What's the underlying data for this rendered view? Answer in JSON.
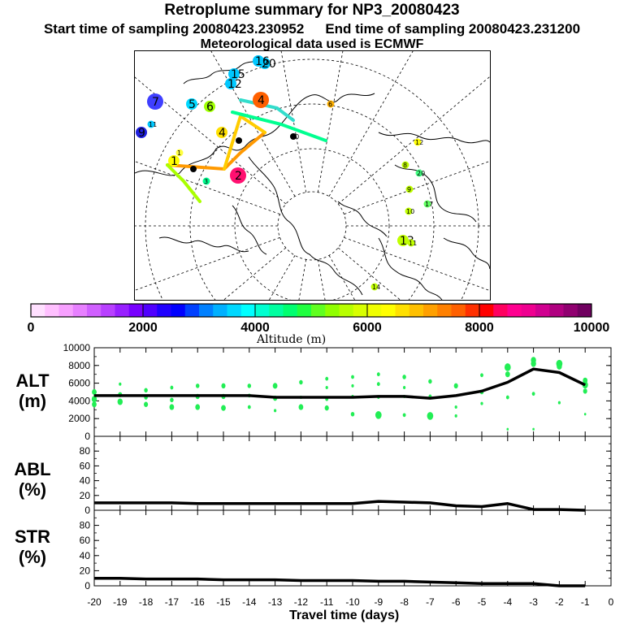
{
  "header": {
    "title": "Retroplume summary for NP3_20080423",
    "start_label": "Start time of sampling 20080423.230952",
    "end_label": "End time of sampling 20080423.231200",
    "met_label": "Meteorological data used is ECMWF"
  },
  "map": {
    "points": [
      {
        "label": "7",
        "color": "#3f3fff",
        "size": "large"
      },
      {
        "label": "5",
        "color": "#00d8ff",
        "size": "medium"
      },
      {
        "label": "6",
        "color": "#9fff00",
        "size": "medium"
      },
      {
        "label": "4",
        "color": "#ff6000",
        "size": "large"
      },
      {
        "label": "4",
        "color": "#ffe000",
        "size": "medium"
      },
      {
        "label": "9",
        "color": "#2020e0",
        "size": "medium"
      },
      {
        "label": "2",
        "color": "#ff1070",
        "size": "large"
      },
      {
        "label": "1",
        "color": "#ffff00",
        "size": "medium"
      },
      {
        "label": "3",
        "color": "#00ff90",
        "size": "small"
      },
      {
        "label": "12",
        "color": "#00c8ff",
        "size": "medium"
      },
      {
        "label": "15",
        "color": "#00c8ff",
        "size": "medium"
      },
      {
        "label": "20",
        "color": "#00c8ff",
        "size": "medium"
      },
      {
        "label": "16",
        "color": "#00c8ff",
        "size": "medium"
      },
      {
        "label": "6",
        "color": "#ffb000",
        "size": "small"
      },
      {
        "label": "8",
        "color": "#c0ff00",
        "size": "small"
      },
      {
        "label": "9",
        "color": "#c0ff00",
        "size": "small"
      },
      {
        "label": "10",
        "color": "#c0ff00",
        "size": "small"
      },
      {
        "label": "13",
        "color": "#c0ff00",
        "size": "medium"
      },
      {
        "label": "11",
        "color": "#c0ff00",
        "size": "small"
      },
      {
        "label": "12",
        "color": "#ffff00",
        "size": "small"
      },
      {
        "label": "17",
        "color": "#60ff60",
        "size": "small"
      },
      {
        "label": "20",
        "color": "#40ff80",
        "size": "small"
      },
      {
        "label": "14",
        "color": "#c0ff00",
        "size": "small"
      },
      {
        "label": "11",
        "color": "#00c8ff",
        "size": "small"
      },
      {
        "label": "1",
        "color": "#ffff40",
        "size": "small"
      },
      {
        "label": "2",
        "color": "#000000",
        "size": "tiny"
      },
      {
        "label": "3",
        "color": "#000000",
        "size": "tiny"
      },
      {
        "label": "10",
        "color": "#000000",
        "size": "tiny"
      }
    ]
  },
  "colorbar": {
    "axis_label": "Altitude (m)",
    "ticks": [
      "0",
      "2000",
      "4000",
      "6000",
      "8000",
      "10000"
    ],
    "colors": [
      "#ffe0ff",
      "#ffc0ff",
      "#f7a0ff",
      "#e780ff",
      "#d060ff",
      "#b840ff",
      "#9820ff",
      "#7800ff",
      "#5000ff",
      "#2000ff",
      "#0000ff",
      "#0040ff",
      "#0080ff",
      "#00b0ff",
      "#00d8ff",
      "#00ffff",
      "#00ffd0",
      "#00ffa0",
      "#00ff70",
      "#20ff40",
      "#60ff20",
      "#90ff00",
      "#b8ff00",
      "#d8ff00",
      "#f0ff00",
      "#ffff00",
      "#ffe000",
      "#ffc000",
      "#ffa000",
      "#ff8000",
      "#ff6000",
      "#ff3000",
      "#ff0000",
      "#ff0060",
      "#ff0090",
      "#ef0090",
      "#d00090",
      "#b00080",
      "#900070",
      "#700060"
    ]
  },
  "panels": {
    "alt": {
      "label_line1": "ALT",
      "label_line2": "(m)"
    },
    "abl": {
      "label_line1": "ABL",
      "label_line2": "(%)"
    },
    "str": {
      "label_line1": "STR",
      "label_line2": "(%)"
    }
  },
  "xaxis_label": "Travel time (days)",
  "chart_data": {
    "type": "line",
    "x": [
      -20,
      -19,
      -18,
      -17,
      -16,
      -15,
      -14,
      -13,
      -12,
      -11,
      -10,
      -9,
      -8,
      -7,
      -6,
      -5,
      -4,
      -3,
      -2,
      -1
    ],
    "xlim": [
      -20,
      0
    ],
    "xticks": [
      "-20",
      "-19",
      "-18",
      "-17",
      "-16",
      "-15",
      "-14",
      "-13",
      "-12",
      "-11",
      "-10",
      "-9",
      "-8",
      "-7",
      "-6",
      "-5",
      "-4",
      "-3",
      "-2",
      "-1",
      "0"
    ],
    "xlabel": "Travel time (days)",
    "series": [
      {
        "name": "ALT (m)",
        "ylim": [
          0,
          10000
        ],
        "yticks": [
          "0",
          "2000",
          "4000",
          "6000",
          "8000",
          "10000"
        ],
        "values": [
          4600,
          4600,
          4600,
          4600,
          4600,
          4600,
          4600,
          4400,
          4400,
          4400,
          4400,
          4500,
          4500,
          4300,
          4600,
          5100,
          6100,
          7600,
          7200,
          5800
        ],
        "scatter": [
          [
            [
              5000,
              0.9
            ],
            [
              4200,
              1.0
            ],
            [
              3600,
              0.9
            ]
          ],
          [
            [
              5900,
              0.5
            ],
            [
              4700,
              0.8
            ],
            [
              3900,
              1.0
            ]
          ],
          [
            [
              5200,
              0.7
            ],
            [
              4400,
              0.7
            ],
            [
              3600,
              0.8
            ]
          ],
          [
            [
              5500,
              0.6
            ],
            [
              4100,
              0.7
            ],
            [
              3300,
              0.9
            ]
          ],
          [
            [
              5700,
              0.7
            ],
            [
              4500,
              0.8
            ],
            [
              3300,
              0.9
            ]
          ],
          [
            [
              5700,
              0.8
            ],
            [
              4500,
              0.8
            ],
            [
              3200,
              0.9
            ]
          ],
          [
            [
              5700,
              0.7
            ],
            [
              4600,
              0.6
            ],
            [
              3300,
              0.6
            ]
          ],
          [
            [
              5700,
              0.9
            ],
            [
              4300,
              0.8
            ],
            [
              2900,
              0.5
            ]
          ],
          [
            [
              6100,
              0.7
            ],
            [
              4400,
              0.5
            ],
            [
              3300,
              0.9
            ]
          ],
          [
            [
              6500,
              0.6
            ],
            [
              5500,
              0.5
            ],
            [
              4200,
              0.6
            ],
            [
              3200,
              0.8
            ]
          ],
          [
            [
              6700,
              0.6
            ],
            [
              5700,
              0.5
            ],
            [
              4500,
              0.5
            ],
            [
              2500,
              0.7
            ]
          ],
          [
            [
              7000,
              0.6
            ],
            [
              5900,
              0.6
            ],
            [
              4400,
              0.5
            ],
            [
              2400,
              1.2
            ]
          ],
          [
            [
              6700,
              0.7
            ],
            [
              5500,
              0.5
            ],
            [
              4500,
              0.5
            ],
            [
              2400,
              0.6
            ]
          ],
          [
            [
              6200,
              0.7
            ],
            [
              4500,
              0.6
            ],
            [
              2300,
              1.2
            ]
          ],
          [
            [
              5700,
              0.8
            ],
            [
              3300,
              0.5
            ],
            [
              2300,
              0.5
            ]
          ],
          [
            [
              6900,
              0.6
            ],
            [
              5000,
              0.7
            ],
            [
              3700,
              0.5
            ]
          ],
          [
            [
              7800,
              1.2
            ],
            [
              7000,
              0.9
            ],
            [
              4400,
              0.6
            ],
            [
              800,
              0.4
            ]
          ],
          [
            [
              8600,
              1.0
            ],
            [
              8200,
              1.0
            ],
            [
              4800,
              0.6
            ],
            [
              800,
              0.4
            ]
          ],
          [
            [
              8200,
              1.2
            ],
            [
              7900,
              1.0
            ],
            [
              3800,
              0.5
            ]
          ],
          [
            [
              6300,
              0.9
            ],
            [
              5800,
              1.1
            ],
            [
              5100,
              0.8
            ],
            [
              2500,
              0.4
            ]
          ]
        ]
      },
      {
        "name": "ABL (%)",
        "ylim": [
          0,
          100
        ],
        "yticks": [
          "0",
          "20",
          "40",
          "60",
          "80"
        ],
        "values": [
          10,
          10,
          10,
          10,
          9,
          9,
          9,
          9,
          9,
          9,
          9,
          12,
          11,
          10,
          6,
          5,
          9,
          1,
          1,
          0
        ]
      },
      {
        "name": "STR (%)",
        "ylim": [
          0,
          100
        ],
        "yticks": [
          "0",
          "20",
          "40",
          "60",
          "80"
        ],
        "values": [
          10,
          10,
          9,
          9,
          9,
          8,
          8,
          8,
          7,
          7,
          7,
          6,
          6,
          5,
          4,
          3,
          3,
          3,
          0,
          0
        ]
      }
    ]
  }
}
